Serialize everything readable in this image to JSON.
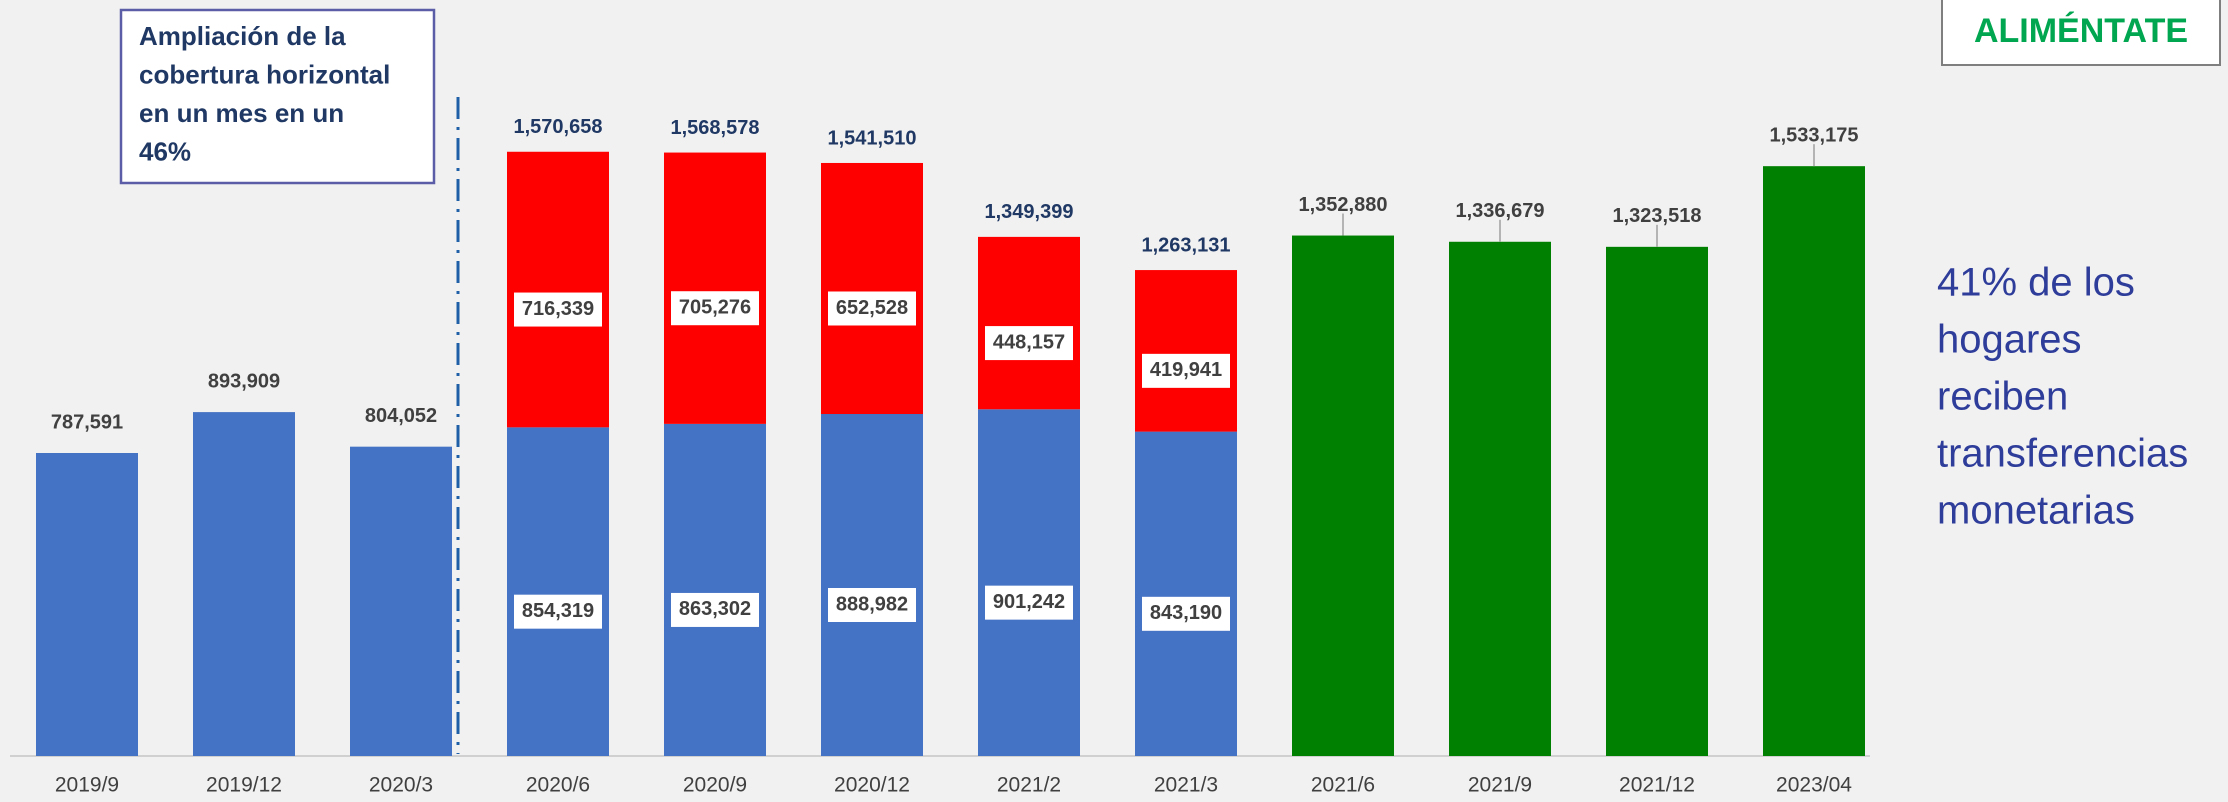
{
  "chart_data": {
    "type": "stacked-bar",
    "categories": [
      "2019/9",
      "2019/12",
      "2020/3",
      "2020/6",
      "2020/9",
      "2020/12",
      "2021/2",
      "2021/3",
      "2021/6",
      "2021/9",
      "2021/12",
      "2023/04"
    ],
    "series": [
      {
        "color": "#4472c4",
        "values": [
          787591,
          893909,
          804052,
          854319,
          863302,
          888982,
          901242,
          843190,
          null,
          null,
          null,
          null
        ],
        "value_labels": [
          "787,591",
          "893,909",
          "804,052",
          "854,319",
          "863,302",
          "888,982",
          "901,242",
          "843,190",
          null,
          null,
          null,
          null
        ]
      },
      {
        "color": "#ff0000",
        "values": [
          null,
          null,
          null,
          716339,
          705276,
          652528,
          448157,
          419941,
          null,
          null,
          null,
          null
        ],
        "value_labels": [
          null,
          null,
          null,
          "716,339",
          "705,276",
          "652,528",
          "448,157",
          "419,941",
          null,
          null,
          null,
          null
        ]
      },
      {
        "color": "#008000",
        "values": [
          null,
          null,
          null,
          null,
          null,
          null,
          null,
          null,
          1352880,
          1336679,
          1323518,
          1533175
        ],
        "value_labels": [
          null,
          null,
          null,
          null,
          null,
          null,
          null,
          null,
          "1,352,880",
          "1,336,679",
          "1,323,518",
          "1,533,175"
        ]
      }
    ],
    "totals": {
      "values": [
        null,
        null,
        null,
        1570658,
        1568578,
        1541510,
        1349399,
        1263131,
        null,
        null,
        null,
        null
      ],
      "value_labels": [
        null,
        null,
        null,
        "1,570,658",
        "1,568,578",
        "1,541,510",
        "1,349,399",
        "1,263,131",
        null,
        null,
        null,
        null
      ]
    },
    "ylim": [
      0,
      1700000
    ],
    "annotation_box": [
      "Ampliación de la",
      "cobertura horizontal",
      "en un mes en un",
      "46%"
    ],
    "side_note": [
      "41% de los",
      "hogares",
      "reciben",
      "transferencias",
      "monetarias"
    ],
    "logo": "ALIMÉNTATE"
  }
}
